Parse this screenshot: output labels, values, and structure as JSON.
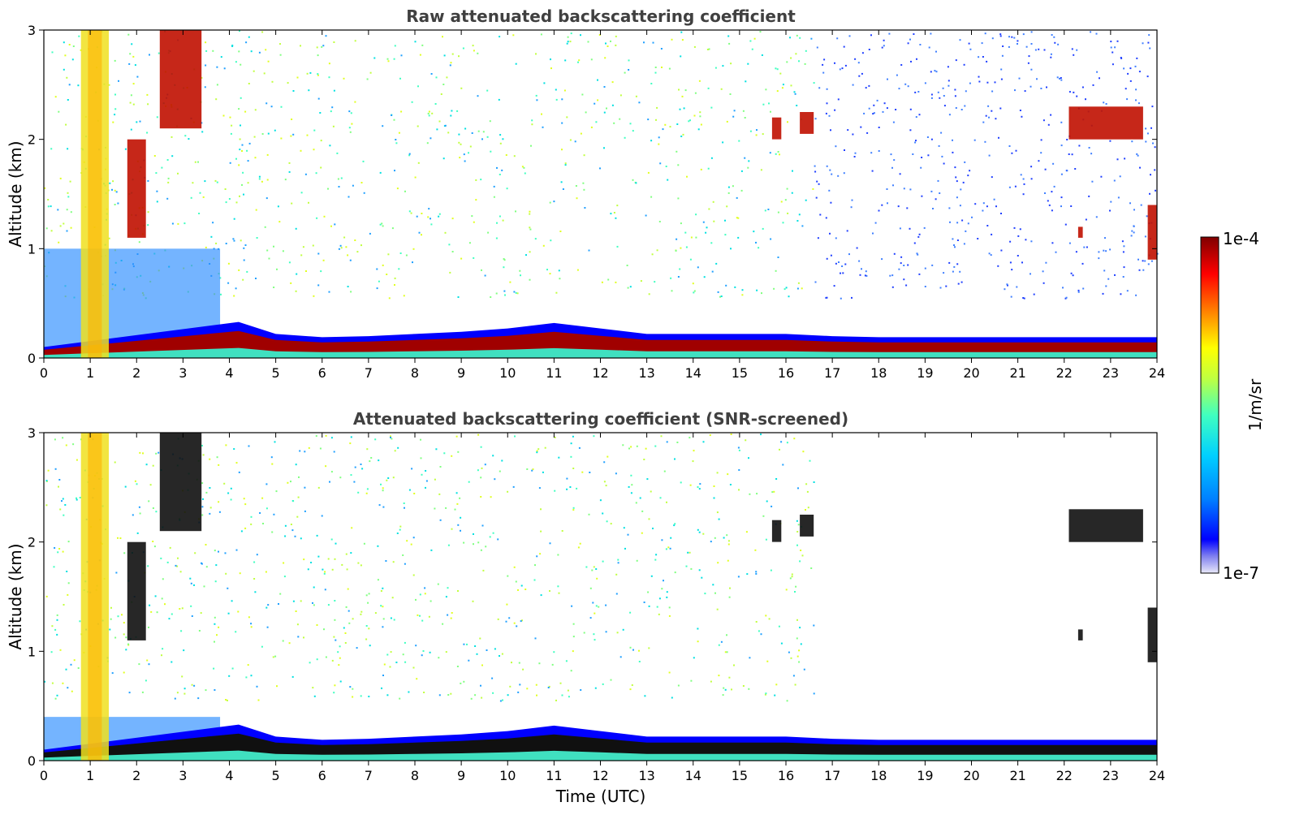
{
  "chart_data": [
    {
      "type": "heatmap",
      "title": "Raw attenuated backscattering coefficient",
      "xlabel": "",
      "ylabel": "Altitude (km)",
      "xlim": [
        0,
        24
      ],
      "ylim": [
        0,
        3
      ],
      "x_ticks": [
        "0",
        "1",
        "2",
        "3",
        "4",
        "5",
        "6",
        "7",
        "8",
        "9",
        "10",
        "11",
        "12",
        "13",
        "14",
        "15",
        "16",
        "17",
        "18",
        "19",
        "20",
        "21",
        "22",
        "23",
        "24"
      ],
      "y_ticks": [
        "0",
        "1",
        "2",
        "3"
      ],
      "surface_layer_top_km": [
        [
          0,
          0.1
        ],
        [
          4.2,
          0.33
        ],
        [
          5,
          0.22
        ],
        [
          6,
          0.19
        ],
        [
          7,
          0.2
        ],
        [
          8,
          0.22
        ],
        [
          9,
          0.24
        ],
        [
          10,
          0.27
        ],
        [
          11,
          0.32
        ],
        [
          12,
          0.27
        ],
        [
          13,
          0.22
        ],
        [
          14,
          0.22
        ],
        [
          15,
          0.22
        ],
        [
          16,
          0.22
        ],
        [
          17,
          0.2
        ],
        [
          18,
          0.19
        ],
        [
          20,
          0.19
        ],
        [
          22,
          0.19
        ],
        [
          24,
          0.19
        ]
      ],
      "cloud_features": [
        {
          "t_start": 0.8,
          "t_end": 1.4,
          "alt_low": 0.0,
          "alt_high": 3.0
        },
        {
          "t_start": 1.8,
          "t_end": 2.2,
          "alt_low": 1.1,
          "alt_high": 2.0
        },
        {
          "t_start": 2.5,
          "t_end": 3.4,
          "alt_low": 2.1,
          "alt_high": 3.0
        },
        {
          "t_start": 15.7,
          "t_end": 15.9,
          "alt_low": 2.0,
          "alt_high": 2.2
        },
        {
          "t_start": 16.3,
          "t_end": 16.6,
          "alt_low": 2.05,
          "alt_high": 2.25
        },
        {
          "t_start": 22.1,
          "t_end": 23.7,
          "alt_low": 2.0,
          "alt_high": 2.3
        },
        {
          "t_start": 22.3,
          "t_end": 22.4,
          "alt_low": 1.1,
          "alt_high": 1.2
        },
        {
          "t_start": 23.8,
          "t_end": 24.0,
          "alt_low": 0.9,
          "alt_high": 1.4
        }
      ]
    },
    {
      "type": "heatmap",
      "title": "Attenuated backscattering coefficient (SNR-screened)",
      "xlabel": "Time (UTC)",
      "ylabel": "Altitude (km)",
      "xlim": [
        0,
        24
      ],
      "ylim": [
        0,
        3
      ],
      "x_ticks": [
        "0",
        "1",
        "2",
        "3",
        "4",
        "5",
        "6",
        "7",
        "8",
        "9",
        "10",
        "11",
        "12",
        "13",
        "14",
        "15",
        "16",
        "17",
        "18",
        "19",
        "20",
        "21",
        "22",
        "23",
        "24"
      ],
      "y_ticks": [
        "0",
        "1",
        "2",
        "3"
      ],
      "surface_layer_top_km": [
        [
          0,
          0.1
        ],
        [
          4.2,
          0.33
        ],
        [
          5,
          0.22
        ],
        [
          6,
          0.19
        ],
        [
          7,
          0.2
        ],
        [
          8,
          0.22
        ],
        [
          9,
          0.24
        ],
        [
          10,
          0.27
        ],
        [
          11,
          0.32
        ],
        [
          12,
          0.27
        ],
        [
          13,
          0.22
        ],
        [
          14,
          0.22
        ],
        [
          15,
          0.22
        ],
        [
          16,
          0.22
        ],
        [
          17,
          0.2
        ],
        [
          18,
          0.19
        ],
        [
          20,
          0.19
        ],
        [
          22,
          0.19
        ],
        [
          24,
          0.19
        ]
      ],
      "cloud_features": [
        {
          "t_start": 0.8,
          "t_end": 1.4,
          "alt_low": 0.0,
          "alt_high": 3.0
        },
        {
          "t_start": 1.8,
          "t_end": 2.2,
          "alt_low": 1.1,
          "alt_high": 2.0
        },
        {
          "t_start": 2.5,
          "t_end": 3.4,
          "alt_low": 2.1,
          "alt_high": 3.0
        },
        {
          "t_start": 15.7,
          "t_end": 15.9,
          "alt_low": 2.0,
          "alt_high": 2.2
        },
        {
          "t_start": 16.3,
          "t_end": 16.6,
          "alt_low": 2.05,
          "alt_high": 2.25
        },
        {
          "t_start": 22.1,
          "t_end": 23.7,
          "alt_low": 2.0,
          "alt_high": 2.3
        },
        {
          "t_start": 22.3,
          "t_end": 22.4,
          "alt_low": 1.1,
          "alt_high": 1.2
        },
        {
          "t_start": 23.8,
          "t_end": 24.0,
          "alt_low": 0.9,
          "alt_high": 1.4
        }
      ]
    }
  ],
  "colorbar": {
    "label": "1/m/sr",
    "max_label": "1e-4",
    "min_label": "1e-7",
    "scale": "log",
    "colormap_hex": [
      "#e8e8f8",
      "#8080f0",
      "#0000ff",
      "#0080ff",
      "#00d0ff",
      "#40ffc0",
      "#c0ff40",
      "#ffff00",
      "#ff8000",
      "#ff0000",
      "#800000"
    ]
  }
}
